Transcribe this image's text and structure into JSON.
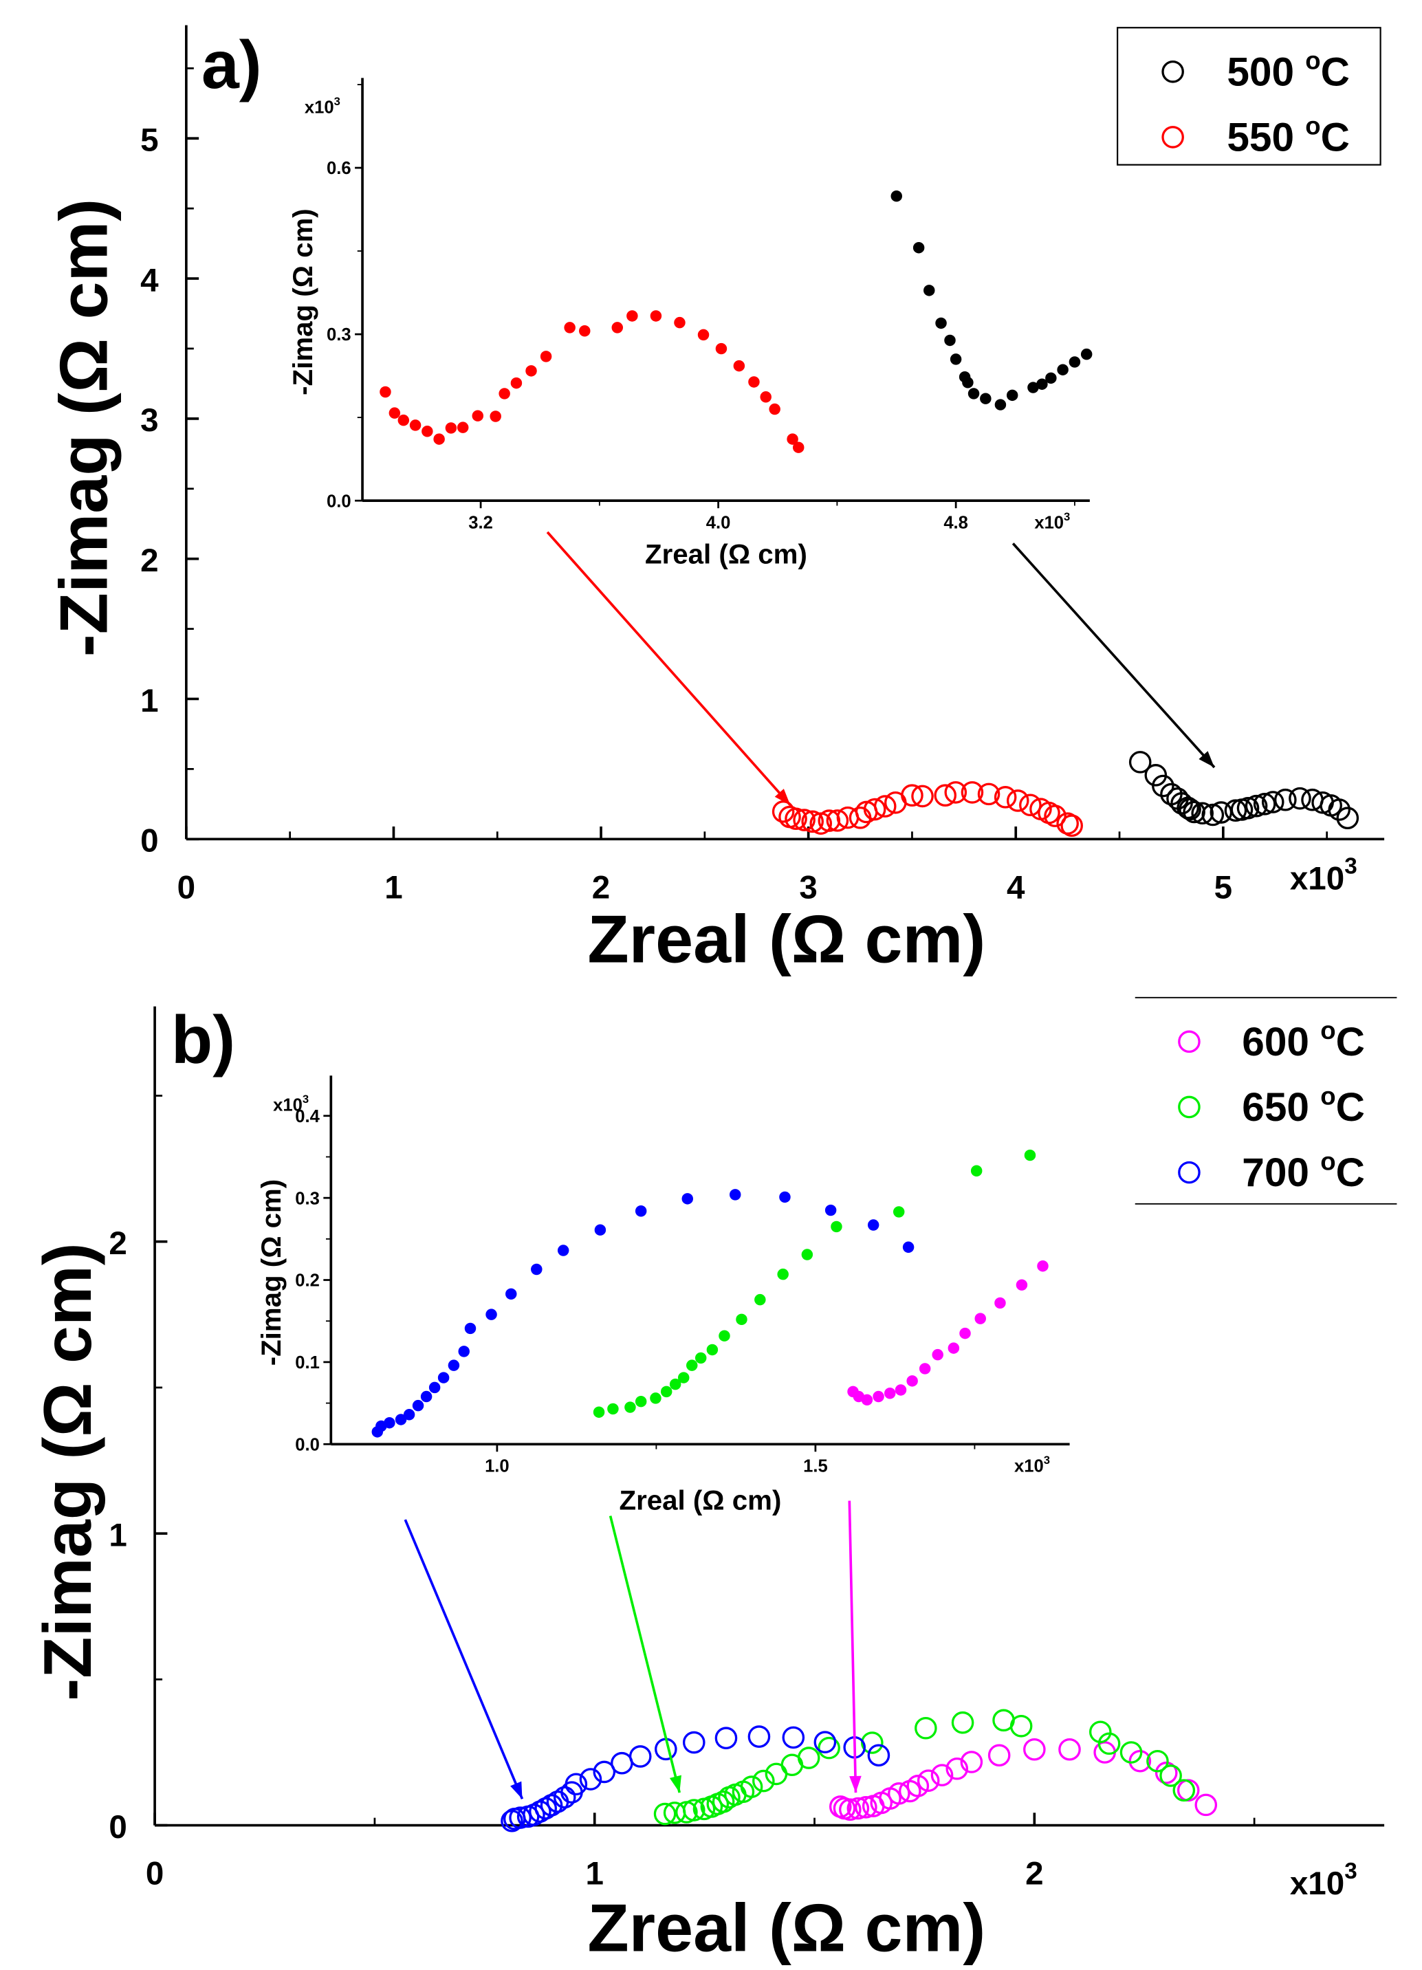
{
  "chart_data": [
    {
      "panel_label": "a)",
      "type": "scatter",
      "xlabel": "Zreal (Ω cm)",
      "ylabel": "-Zimag (Ω cm)",
      "x_multiplier": "x10",
      "x_multiplier_exp": "3",
      "xlim": [
        0,
        5.78
      ],
      "ylim": [
        0,
        5.8
      ],
      "xticks": [
        "0",
        "1",
        "2",
        "3",
        "4",
        "5"
      ],
      "yticks": [
        "0",
        "1",
        "2",
        "3",
        "4",
        "5"
      ],
      "legend": {
        "placement": "top-right",
        "entries": [
          {
            "label": "500 ",
            "sup": "o",
            "unit": "C",
            "color": "#000000"
          },
          {
            "label": "550 ",
            "sup": "o",
            "unit": "C",
            "color": "#ff0000"
          }
        ]
      },
      "series": [
        {
          "name": "500 °C",
          "color": "#000000",
          "x": [
            4.6,
            4.675,
            4.71,
            4.75,
            4.78,
            4.8,
            4.83,
            4.84,
            4.86,
            4.9,
            4.95,
            4.99,
            5.06,
            5.09,
            5.12,
            5.16,
            5.2,
            5.24,
            5.3,
            5.37,
            5.43,
            5.48,
            5.52,
            5.56,
            5.6
          ],
          "y": [
            0.549,
            0.456,
            0.379,
            0.32,
            0.289,
            0.255,
            0.223,
            0.213,
            0.193,
            0.184,
            0.173,
            0.19,
            0.204,
            0.21,
            0.221,
            0.236,
            0.25,
            0.264,
            0.28,
            0.29,
            0.28,
            0.26,
            0.24,
            0.21,
            0.15
          ]
        },
        {
          "name": "550 °C",
          "color": "#ff0000",
          "x": [
            2.879,
            2.91,
            2.94,
            2.98,
            3.02,
            3.06,
            3.1,
            3.14,
            3.19,
            3.25,
            3.28,
            3.32,
            3.37,
            3.42,
            3.5,
            3.55,
            3.66,
            3.71,
            3.79,
            3.87,
            3.95,
            4.01,
            4.07,
            4.12,
            4.16,
            4.19,
            4.25,
            4.27
          ],
          "y": [
            0.196,
            0.158,
            0.145,
            0.136,
            0.125,
            0.111,
            0.131,
            0.132,
            0.153,
            0.152,
            0.193,
            0.212,
            0.234,
            0.26,
            0.312,
            0.306,
            0.312,
            0.333,
            0.333,
            0.321,
            0.299,
            0.274,
            0.243,
            0.214,
            0.187,
            0.165,
            0.111,
            0.096
          ]
        }
      ],
      "inset": {
        "xlabel": "Zreal (Ω cm)",
        "ylabel": "-Zimag (Ω cm)",
        "xlim": [
          2.78,
          5.24
        ],
        "ylim": [
          0,
          0.75
        ],
        "xticks": [
          "3.2",
          "4.0",
          "4.8"
        ],
        "yticks": [
          "0.0",
          "0.3",
          "0.6"
        ],
        "x_multiplier": "x10",
        "y_multiplier": "x10",
        "exp": "3"
      }
    },
    {
      "panel_label": "b)",
      "type": "scatter",
      "xlabel": "Zreal (Ω cm)",
      "ylabel": "-Zimag (Ω cm)",
      "x_multiplier": "x10",
      "x_multiplier_exp": "3",
      "xlim": [
        0,
        2.8
      ],
      "ylim": [
        0,
        2.8
      ],
      "xticks": [
        "0",
        "1",
        "2"
      ],
      "yticks": [
        "0",
        "1",
        "2"
      ],
      "legend": {
        "placement": "top-right",
        "entries": [
          {
            "label": "600 ",
            "sup": "o",
            "unit": "C",
            "color": "#ff00ff"
          },
          {
            "label": "650 ",
            "sup": "o",
            "unit": "C",
            "color": "#00ee00"
          },
          {
            "label": "700 ",
            "sup": "o",
            "unit": "C",
            "color": "#0000ff"
          }
        ]
      },
      "series": [
        {
          "name": "600 °C",
          "color": "#ff00ff",
          "x": [
            1.559,
            1.568,
            1.581,
            1.599,
            1.617,
            1.634,
            1.652,
            1.672,
            1.692,
            1.717,
            1.735,
            1.759,
            1.79,
            1.824,
            1.857,
            1.92,
            2.0,
            2.08,
            2.16,
            2.24,
            2.3,
            2.35,
            2.39
          ],
          "y": [
            0.064,
            0.058,
            0.054,
            0.058,
            0.062,
            0.066,
            0.077,
            0.092,
            0.109,
            0.117,
            0.135,
            0.153,
            0.172,
            0.194,
            0.217,
            0.24,
            0.26,
            0.26,
            0.25,
            0.22,
            0.18,
            0.12,
            0.07
          ]
        },
        {
          "name": "650 °C",
          "color": "#00ee00",
          "x": [
            1.16,
            1.182,
            1.209,
            1.226,
            1.249,
            1.266,
            1.28,
            1.293,
            1.306,
            1.32,
            1.338,
            1.357,
            1.384,
            1.413,
            1.449,
            1.487,
            1.533,
            1.631,
            1.753,
            1.837,
            1.93,
            1.97,
            2.15,
            2.17,
            2.22,
            2.28,
            2.31,
            2.34
          ],
          "y": [
            0.039,
            0.043,
            0.045,
            0.052,
            0.056,
            0.064,
            0.073,
            0.081,
            0.096,
            0.105,
            0.115,
            0.132,
            0.152,
            0.176,
            0.207,
            0.231,
            0.265,
            0.283,
            0.333,
            0.352,
            0.36,
            0.34,
            0.32,
            0.28,
            0.25,
            0.22,
            0.17,
            0.12
          ]
        },
        {
          "name": "700 °C",
          "color": "#0000ff",
          "x": [
            0.812,
            0.818,
            0.831,
            0.849,
            0.862,
            0.876,
            0.889,
            0.902,
            0.916,
            0.932,
            0.948,
            0.958,
            0.991,
            1.022,
            1.062,
            1.104,
            1.162,
            1.226,
            1.299,
            1.374,
            1.452,
            1.524,
            1.591,
            1.646
          ],
          "y": [
            0.015,
            0.022,
            0.026,
            0.03,
            0.036,
            0.047,
            0.058,
            0.069,
            0.081,
            0.096,
            0.113,
            0.141,
            0.158,
            0.183,
            0.213,
            0.236,
            0.261,
            0.284,
            0.299,
            0.304,
            0.301,
            0.285,
            0.267,
            0.24
          ]
        }
      ],
      "inset": {
        "xlabel": "Zreal (Ω cm)",
        "ylabel": "-Zimag (Ω cm)",
        "xlim": [
          0.75,
          1.9
        ],
        "ylim": [
          0,
          0.43
        ],
        "xticks": [
          "1.0",
          "1.5"
        ],
        "yticks": [
          "0.0",
          "0.1",
          "0.2",
          "0.3",
          "0.4"
        ],
        "x_multiplier": "x10",
        "y_multiplier": "x10",
        "exp": "3"
      }
    }
  ]
}
